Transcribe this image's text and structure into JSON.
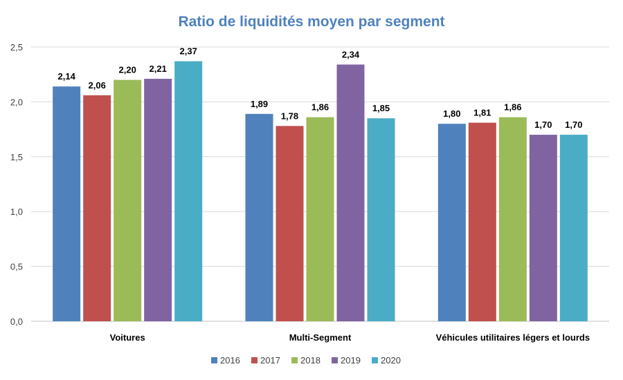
{
  "chart_data": {
    "type": "bar",
    "title": "Ratio de liquidités moyen par segment",
    "xlabel": "",
    "ylabel": "",
    "categories": [
      "Voitures",
      "Multi-Segment",
      "Véhicules utilitaires légers et lourds"
    ],
    "series": [
      {
        "name": "2016",
        "color": "#4f81bd",
        "values": [
          2.14,
          1.89,
          1.8
        ],
        "labels": [
          "2,14",
          "1,89",
          "1,80"
        ]
      },
      {
        "name": "2017",
        "color": "#c0504d",
        "values": [
          2.06,
          1.78,
          1.81
        ],
        "labels": [
          "2,06",
          "1,78",
          "1,81"
        ]
      },
      {
        "name": "2018",
        "color": "#9bbb59",
        "values": [
          2.2,
          1.86,
          1.86
        ],
        "labels": [
          "2,20",
          "1,86",
          "1,86"
        ]
      },
      {
        "name": "2019",
        "color": "#8064a2",
        "values": [
          2.21,
          2.34,
          1.7
        ],
        "labels": [
          "2,21",
          "2,34",
          "1,70"
        ]
      },
      {
        "name": "2020",
        "color": "#4bacc6",
        "values": [
          2.37,
          1.85,
          1.7
        ],
        "labels": [
          "2,37",
          "1,85",
          "1,70"
        ]
      }
    ],
    "ylim": [
      0,
      2.5
    ],
    "yticks": [
      0,
      0.5,
      1.0,
      1.5,
      2.0,
      2.5
    ],
    "ytick_labels": [
      "0,0",
      "0,5",
      "1,0",
      "1,5",
      "2,0",
      "2,5"
    ],
    "grid": true,
    "legend_position": "bottom"
  }
}
